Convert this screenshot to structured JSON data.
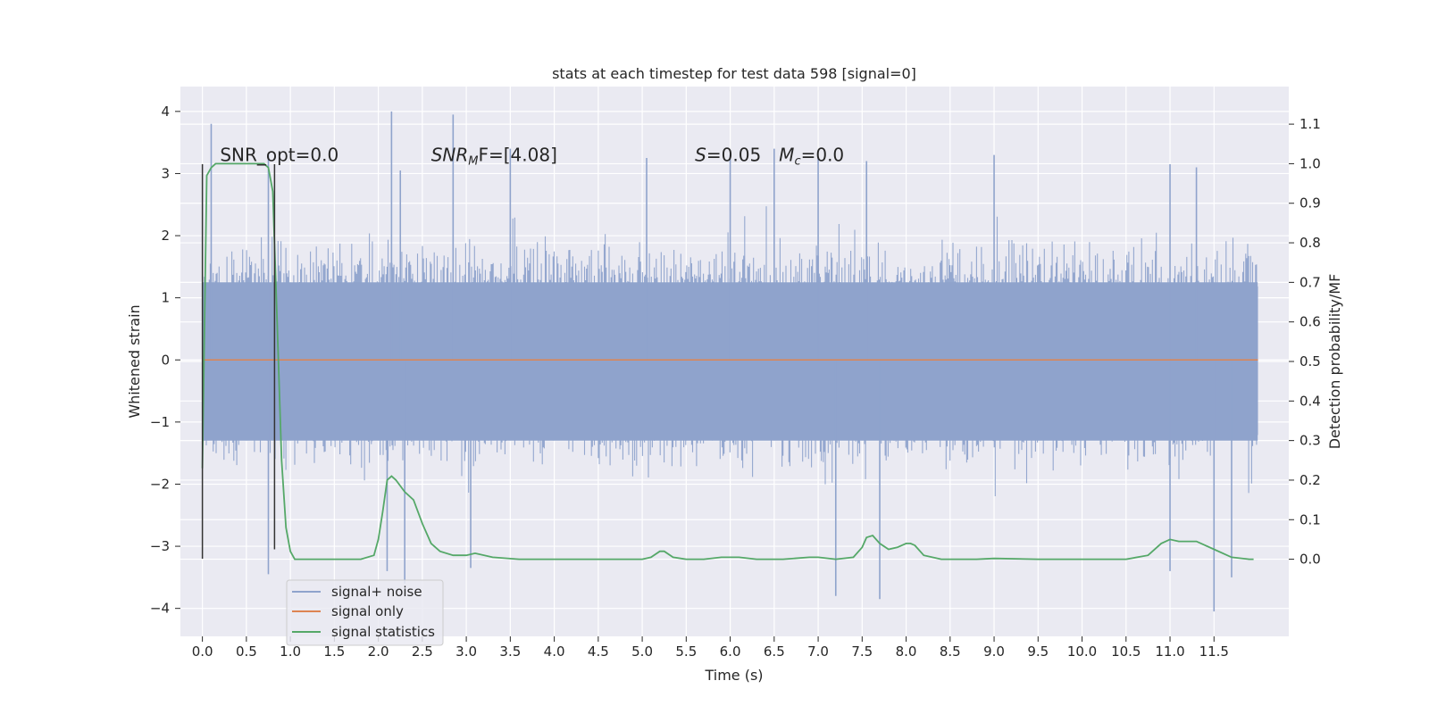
{
  "chart_data": {
    "type": "line",
    "title": "stats at each timestep for test data 598 [signal=0]",
    "xlabel": "Time (s)",
    "ylabel_left": "Whitened strain",
    "ylabel_right": "Detection probability/MF",
    "xlim": [
      -0.25,
      12.35
    ],
    "ylim_left": [
      -4.45,
      4.4
    ],
    "ylim_right": [
      -0.195,
      1.195
    ],
    "x_ticks": [
      0.0,
      0.5,
      1.0,
      1.5,
      2.0,
      2.5,
      3.0,
      3.5,
      4.0,
      4.5,
      5.0,
      5.5,
      6.0,
      6.5,
      7.0,
      7.5,
      8.0,
      8.5,
      9.0,
      9.5,
      10.0,
      10.5,
      11.0,
      11.5
    ],
    "x_tick_labels": [
      "0.0",
      "0.5",
      "1.0",
      "1.5",
      "2.0",
      "2.5",
      "3.0",
      "3.5",
      "4.0",
      "4.5",
      "5.0",
      "5.5",
      "6.0",
      "6.5",
      "7.0",
      "7.5",
      "8.0",
      "8.5",
      "9.0",
      "9.5",
      "10.0",
      "10.5",
      "11.0",
      "11.5"
    ],
    "y_left_ticks": [
      -4,
      -3,
      -2,
      -1,
      0,
      1,
      2,
      3,
      4
    ],
    "y_left_tick_labels": [
      "−4",
      "−3",
      "−2",
      "−1",
      "0",
      "1",
      "2",
      "3",
      "4"
    ],
    "y_right_ticks": [
      0.0,
      0.1,
      0.2,
      0.3,
      0.4,
      0.5,
      0.6,
      0.7,
      0.8,
      0.9,
      1.0,
      1.1
    ],
    "y_right_tick_labels": [
      "0.0",
      "0.1",
      "0.2",
      "0.3",
      "0.4",
      "0.5",
      "0.6",
      "0.7",
      "0.8",
      "0.9",
      "1.0",
      "1.1"
    ],
    "grid": true,
    "legend_position": "lower-left",
    "colors": {
      "noise": "#8fa3cc",
      "signal": "#dd8452",
      "stats": "#55a868",
      "vline": "#333333",
      "plot_bg": "#eaeaf2",
      "grid": "#ffffff"
    },
    "series": [
      {
        "name": "signal+ noise",
        "axis": "left",
        "x_start": 0.0,
        "x_end": 12.0,
        "envelope_typical": [
          -1.8,
          2.0
        ],
        "peaks_high": [
          {
            "x": 0.1,
            "y": 3.8
          },
          {
            "x": 0.75,
            "y": 3.3
          },
          {
            "x": 2.15,
            "y": 4.0
          },
          {
            "x": 2.25,
            "y": 3.05
          },
          {
            "x": 2.85,
            "y": 3.95
          },
          {
            "x": 3.5,
            "y": 3.4
          },
          {
            "x": 5.05,
            "y": 3.25
          },
          {
            "x": 6.0,
            "y": 3.3
          },
          {
            "x": 6.5,
            "y": 3.4
          },
          {
            "x": 7.0,
            "y": 3.25
          },
          {
            "x": 7.55,
            "y": 3.2
          },
          {
            "x": 9.0,
            "y": 3.3
          },
          {
            "x": 11.0,
            "y": 3.15
          },
          {
            "x": 11.3,
            "y": 3.1
          }
        ],
        "peaks_low": [
          {
            "x": 0.75,
            "y": -3.45
          },
          {
            "x": 2.1,
            "y": -3.4
          },
          {
            "x": 2.3,
            "y": -3.6
          },
          {
            "x": 3.05,
            "y": -3.35
          },
          {
            "x": 7.2,
            "y": -3.8
          },
          {
            "x": 7.7,
            "y": -3.85
          },
          {
            "x": 11.0,
            "y": -3.4
          },
          {
            "x": 11.5,
            "y": -4.05
          },
          {
            "x": 11.7,
            "y": -3.5
          }
        ]
      },
      {
        "name": "signal only",
        "axis": "left",
        "x": [
          0.0,
          12.0
        ],
        "y": [
          0.0,
          0.0
        ]
      },
      {
        "name": "signal statistics",
        "axis": "right",
        "x": [
          0.0,
          0.05,
          0.1,
          0.15,
          0.2,
          0.3,
          0.5,
          0.6,
          0.7,
          0.75,
          0.8,
          0.85,
          0.9,
          0.95,
          1.0,
          1.05,
          1.1,
          1.5,
          1.8,
          1.95,
          2.0,
          2.05,
          2.1,
          2.15,
          2.2,
          2.3,
          2.4,
          2.5,
          2.6,
          2.7,
          2.85,
          3.0,
          3.1,
          3.3,
          3.6,
          4.0,
          4.5,
          5.0,
          5.1,
          5.2,
          5.25,
          5.35,
          5.5,
          5.7,
          5.9,
          6.1,
          6.3,
          6.6,
          6.9,
          7.0,
          7.2,
          7.4,
          7.5,
          7.55,
          7.62,
          7.7,
          7.8,
          7.9,
          8.0,
          8.05,
          8.1,
          8.2,
          8.4,
          8.8,
          9.0,
          9.5,
          10.0,
          10.5,
          10.75,
          10.9,
          11.0,
          11.1,
          11.2,
          11.3,
          11.5,
          11.7,
          11.9,
          11.95
        ],
        "y": [
          0.23,
          0.97,
          0.99,
          1.0,
          1.0,
          1.0,
          1.0,
          1.0,
          1.0,
          0.99,
          0.93,
          0.6,
          0.25,
          0.08,
          0.02,
          0.0,
          0.0,
          0.0,
          0.0,
          0.01,
          0.05,
          0.12,
          0.2,
          0.21,
          0.2,
          0.17,
          0.15,
          0.09,
          0.04,
          0.02,
          0.01,
          0.01,
          0.015,
          0.005,
          0.0,
          0.0,
          0.0,
          0.0,
          0.005,
          0.02,
          0.02,
          0.005,
          0.0,
          0.0,
          0.005,
          0.005,
          0.0,
          0.0,
          0.005,
          0.005,
          0.0,
          0.005,
          0.03,
          0.055,
          0.06,
          0.04,
          0.025,
          0.03,
          0.04,
          0.04,
          0.035,
          0.01,
          0.0,
          0.0,
          0.002,
          0.0,
          0.0,
          0.0,
          0.01,
          0.04,
          0.05,
          0.045,
          0.045,
          0.045,
          0.025,
          0.005,
          0.0,
          0.0
        ]
      }
    ],
    "vlines": [
      {
        "x": 0.0,
        "y": [
          -3.2,
          3.15
        ]
      },
      {
        "x": 0.82,
        "y": [
          -3.05,
          3.15
        ]
      }
    ],
    "annotations": [
      {
        "id": "snr-opt",
        "x": 0.2,
        "y": 3.2,
        "text": "SNR_opt=0.0"
      },
      {
        "id": "snr-mf",
        "x": 2.6,
        "y": 3.2,
        "main": "SNR",
        "sub": "M",
        "rest": "F=[4.08]"
      },
      {
        "id": "s-mc",
        "x": 5.6,
        "y": 3.2,
        "s_label": "S",
        "s_rest": "=0.05",
        "m_label": "M",
        "m_sub": "c",
        "m_rest": "=0.0"
      }
    ]
  }
}
